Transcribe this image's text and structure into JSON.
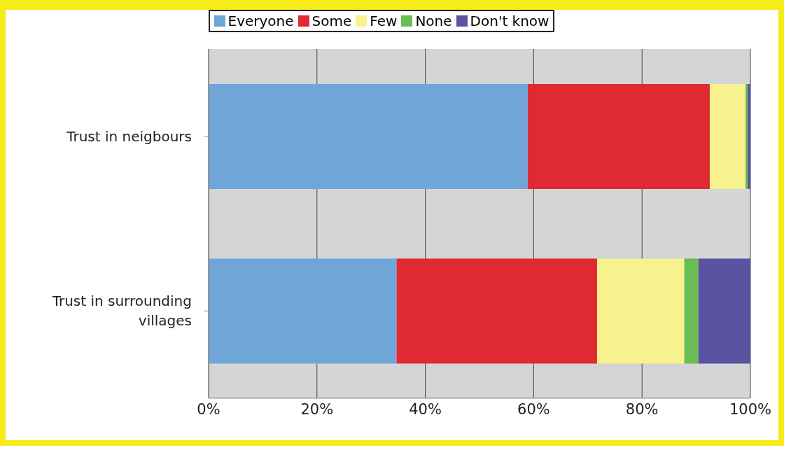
{
  "chart_data": {
    "type": "bar",
    "orientation": "horizontal",
    "stacked": true,
    "categories": [
      "Trust in neigbours",
      "Trust in surrounding villages"
    ],
    "series": [
      {
        "name": "Everyone",
        "color": "#70a5d8",
        "values": [
          58.9,
          34.7
        ]
      },
      {
        "name": "Some",
        "color": "#df2a31",
        "values": [
          33.6,
          37.0
        ]
      },
      {
        "name": "Few",
        "color": "#f8f28e",
        "values": [
          6.6,
          16.1
        ]
      },
      {
        "name": "None",
        "color": "#6abc55",
        "values": [
          0.4,
          2.6
        ]
      },
      {
        "name": "Don't know",
        "color": "#5b52a2",
        "values": [
          0.5,
          9.6
        ]
      }
    ],
    "xlim": [
      0,
      100
    ],
    "xticks": [
      {
        "value": 0,
        "label": "0%"
      },
      {
        "value": 20,
        "label": "20%"
      },
      {
        "value": 40,
        "label": "40%"
      },
      {
        "value": 60,
        "label": "60%"
      },
      {
        "value": 80,
        "label": "80%"
      },
      {
        "value": 100,
        "label": "100%"
      }
    ],
    "grid": "x",
    "legend": "top"
  }
}
